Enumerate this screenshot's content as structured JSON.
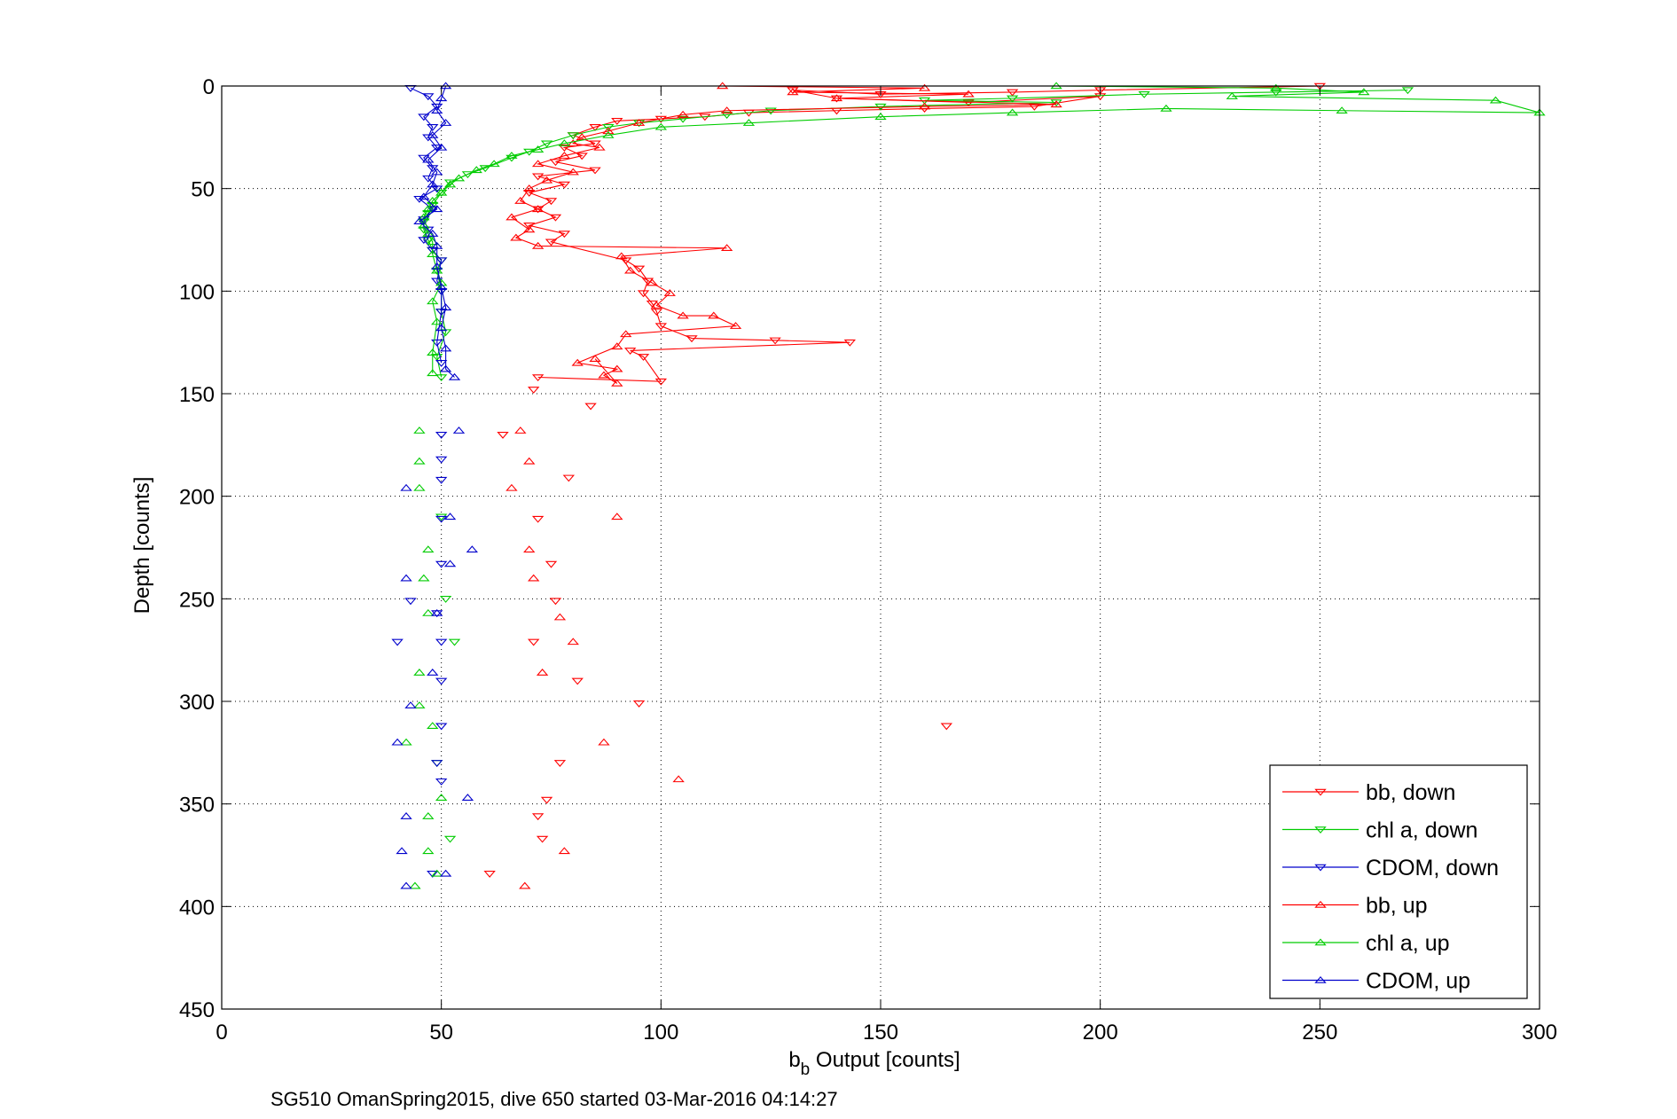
{
  "chart_data": {
    "type": "scatter",
    "xlabel_main": "b",
    "xlabel_sub": "b",
    "xlabel_rest": " Output [counts]",
    "ylabel": "Depth [counts]",
    "caption": "SG510 OmanSpring2015, dive 650 started 03-Mar-2016 04:14:27",
    "xlim": [
      0,
      300
    ],
    "ylim": [
      450,
      0
    ],
    "y_reversed": true,
    "grid": true,
    "legend_position": "bottom-right",
    "x_ticks": [
      0,
      50,
      100,
      150,
      200,
      250,
      300
    ],
    "y_ticks": [
      0,
      50,
      100,
      150,
      200,
      250,
      300,
      350,
      400,
      450
    ],
    "series": [
      {
        "name": "bb, down",
        "color": "#ff0000",
        "marker": "triangle-down",
        "points": [
          [
            250,
            0
          ],
          [
            200,
            2
          ],
          [
            180,
            3
          ],
          [
            150,
            4
          ],
          [
            130,
            2
          ],
          [
            140,
            6
          ],
          [
            170,
            8
          ],
          [
            200,
            5
          ],
          [
            185,
            10
          ],
          [
            160,
            11
          ],
          [
            140,
            12
          ],
          [
            120,
            13
          ],
          [
            110,
            15
          ],
          [
            100,
            16
          ],
          [
            90,
            17
          ],
          [
            85,
            20
          ],
          [
            80,
            24
          ],
          [
            85,
            28
          ],
          [
            78,
            30
          ],
          [
            82,
            34
          ],
          [
            76,
            37
          ],
          [
            85,
            41
          ],
          [
            72,
            44
          ],
          [
            78,
            48
          ],
          [
            70,
            52
          ],
          [
            75,
            56
          ],
          [
            72,
            60
          ],
          [
            76,
            64
          ],
          [
            70,
            68
          ],
          [
            78,
            72
          ],
          [
            75,
            76
          ],
          [
            92,
            85
          ],
          [
            95,
            89
          ],
          [
            97,
            95
          ],
          [
            96,
            101
          ],
          [
            98,
            106
          ],
          [
            99,
            110
          ],
          [
            100,
            117
          ],
          [
            107,
            123
          ],
          [
            126,
            124
          ],
          [
            143,
            125
          ],
          [
            93,
            129
          ],
          [
            96,
            132
          ],
          [
            100,
            144
          ],
          [
            72,
            142
          ],
          [
            71,
            148
          ],
          [
            84,
            156
          ],
          [
            64,
            170
          ],
          [
            79,
            191
          ],
          [
            72,
            211
          ],
          [
            75,
            233
          ],
          [
            76,
            251
          ],
          [
            71,
            271
          ],
          [
            81,
            290
          ],
          [
            95,
            301
          ],
          [
            165,
            312
          ],
          [
            77,
            330
          ],
          [
            74,
            348
          ],
          [
            72,
            356
          ],
          [
            73,
            367
          ],
          [
            61,
            384
          ]
        ]
      },
      {
        "name": "chl a, down",
        "color": "#00cc00",
        "marker": "triangle-down",
        "points": [
          [
            270,
            2
          ],
          [
            240,
            3
          ],
          [
            210,
            4
          ],
          [
            180,
            6
          ],
          [
            160,
            7
          ],
          [
            190,
            8
          ],
          [
            150,
            10
          ],
          [
            125,
            12
          ],
          [
            115,
            14
          ],
          [
            105,
            16
          ],
          [
            95,
            18
          ],
          [
            88,
            20
          ],
          [
            80,
            24
          ],
          [
            74,
            28
          ],
          [
            70,
            32
          ],
          [
            66,
            35
          ],
          [
            60,
            40
          ],
          [
            56,
            43
          ],
          [
            52,
            47
          ],
          [
            50,
            52
          ],
          [
            48,
            58
          ],
          [
            47,
            62
          ],
          [
            46,
            66
          ],
          [
            46,
            70
          ],
          [
            47,
            75
          ],
          [
            48,
            80
          ],
          [
            50,
            85
          ],
          [
            49,
            90
          ],
          [
            50,
            100
          ],
          [
            50,
            110
          ],
          [
            51,
            120
          ],
          [
            49,
            132
          ],
          [
            50,
            142
          ],
          [
            50,
            210
          ],
          [
            51,
            250
          ],
          [
            53,
            271
          ],
          [
            49,
            330
          ],
          [
            52,
            367
          ]
        ]
      },
      {
        "name": "CDOM, down",
        "color": "#0000cc",
        "marker": "triangle-down",
        "points": [
          [
            43,
            1
          ],
          [
            47,
            5
          ],
          [
            49,
            10
          ],
          [
            46,
            15
          ],
          [
            48,
            20
          ],
          [
            47,
            25
          ],
          [
            49,
            30
          ],
          [
            46,
            35
          ],
          [
            48,
            40
          ],
          [
            47,
            45
          ],
          [
            49,
            50
          ],
          [
            45,
            55
          ],
          [
            48,
            60
          ],
          [
            46,
            65
          ],
          [
            47,
            70
          ],
          [
            46,
            75
          ],
          [
            48,
            80
          ],
          [
            50,
            85
          ],
          [
            49,
            95
          ],
          [
            50,
            100
          ],
          [
            50,
            110
          ],
          [
            49,
            125
          ],
          [
            50,
            135
          ],
          [
            50,
            170
          ],
          [
            50,
            182
          ],
          [
            50,
            192
          ],
          [
            50,
            211
          ],
          [
            50,
            233
          ],
          [
            49,
            257
          ],
          [
            50,
            271
          ],
          [
            50,
            290
          ],
          [
            50,
            312
          ],
          [
            40,
            271
          ],
          [
            43,
            251
          ],
          [
            49,
            330
          ],
          [
            50,
            339
          ],
          [
            48,
            384
          ]
        ]
      },
      {
        "name": "bb, up",
        "color": "#ff0000",
        "marker": "triangle-up",
        "points": [
          [
            114,
            0
          ],
          [
            160,
            1
          ],
          [
            130,
            3
          ],
          [
            170,
            4
          ],
          [
            140,
            6
          ],
          [
            190,
            9
          ],
          [
            160,
            10
          ],
          [
            115,
            12
          ],
          [
            105,
            14
          ],
          [
            95,
            18
          ],
          [
            88,
            22
          ],
          [
            82,
            25
          ],
          [
            80,
            28
          ],
          [
            86,
            30
          ],
          [
            78,
            34
          ],
          [
            72,
            38
          ],
          [
            80,
            42
          ],
          [
            74,
            46
          ],
          [
            70,
            50
          ],
          [
            68,
            56
          ],
          [
            72,
            60
          ],
          [
            66,
            64
          ],
          [
            70,
            70
          ],
          [
            67,
            74
          ],
          [
            72,
            78
          ],
          [
            115,
            79
          ],
          [
            91,
            83
          ],
          [
            93,
            90
          ],
          [
            98,
            96
          ],
          [
            102,
            101
          ],
          [
            99,
            107
          ],
          [
            105,
            112
          ],
          [
            112,
            112
          ],
          [
            117,
            117
          ],
          [
            92,
            121
          ],
          [
            90,
            127
          ],
          [
            81,
            135
          ],
          [
            90,
            138
          ],
          [
            87,
            141
          ],
          [
            90,
            145
          ],
          [
            85,
            133
          ],
          [
            68,
            168
          ],
          [
            70,
            183
          ],
          [
            66,
            196
          ],
          [
            70,
            226
          ],
          [
            71,
            240
          ],
          [
            77,
            259
          ],
          [
            80,
            271
          ],
          [
            73,
            286
          ],
          [
            90,
            210
          ],
          [
            87,
            320
          ],
          [
            104,
            338
          ],
          [
            78,
            373
          ],
          [
            69,
            390
          ]
        ]
      },
      {
        "name": "chl a, up",
        "color": "#00cc00",
        "marker": "triangle-up",
        "points": [
          [
            190,
            0
          ],
          [
            240,
            1
          ],
          [
            260,
            3
          ],
          [
            230,
            5
          ],
          [
            290,
            7
          ],
          [
            300,
            13
          ],
          [
            255,
            12
          ],
          [
            215,
            11
          ],
          [
            180,
            13
          ],
          [
            150,
            15
          ],
          [
            120,
            18
          ],
          [
            100,
            20
          ],
          [
            88,
            24
          ],
          [
            78,
            28
          ],
          [
            72,
            31
          ],
          [
            66,
            34
          ],
          [
            62,
            38
          ],
          [
            58,
            41
          ],
          [
            54,
            45
          ],
          [
            52,
            48
          ],
          [
            50,
            52
          ],
          [
            48,
            56
          ],
          [
            47,
            60
          ],
          [
            46,
            64
          ],
          [
            46,
            68
          ],
          [
            47,
            72
          ],
          [
            48,
            76
          ],
          [
            48,
            82
          ],
          [
            49,
            90
          ],
          [
            50,
            96
          ],
          [
            48,
            105
          ],
          [
            49,
            115
          ],
          [
            48,
            130
          ],
          [
            48,
            140
          ],
          [
            45,
            168
          ],
          [
            45,
            183
          ],
          [
            45,
            196
          ],
          [
            47,
            226
          ],
          [
            46,
            240
          ],
          [
            47,
            257
          ],
          [
            45,
            286
          ],
          [
            45,
            302
          ],
          [
            48,
            312
          ],
          [
            42,
            320
          ],
          [
            50,
            347
          ],
          [
            47,
            356
          ],
          [
            47,
            373
          ],
          [
            49,
            384
          ],
          [
            44,
            390
          ]
        ]
      },
      {
        "name": "CDOM, up",
        "color": "#0000cc",
        "marker": "triangle-up",
        "points": [
          [
            51,
            0
          ],
          [
            50,
            6
          ],
          [
            49,
            12
          ],
          [
            51,
            18
          ],
          [
            48,
            24
          ],
          [
            50,
            30
          ],
          [
            47,
            36
          ],
          [
            49,
            42
          ],
          [
            48,
            48
          ],
          [
            46,
            54
          ],
          [
            49,
            60
          ],
          [
            45,
            66
          ],
          [
            48,
            72
          ],
          [
            49,
            78
          ],
          [
            49,
            88
          ],
          [
            50,
            98
          ],
          [
            51,
            108
          ],
          [
            50,
            118
          ],
          [
            51,
            128
          ],
          [
            51,
            138
          ],
          [
            53,
            142
          ],
          [
            54,
            168
          ],
          [
            42,
            196
          ],
          [
            52,
            210
          ],
          [
            57,
            226
          ],
          [
            52,
            233
          ],
          [
            42,
            240
          ],
          [
            49,
            257
          ],
          [
            48,
            286
          ],
          [
            43,
            302
          ],
          [
            40,
            320
          ],
          [
            56,
            347
          ],
          [
            42,
            356
          ],
          [
            41,
            373
          ],
          [
            51,
            384
          ],
          [
            42,
            390
          ]
        ]
      }
    ]
  }
}
